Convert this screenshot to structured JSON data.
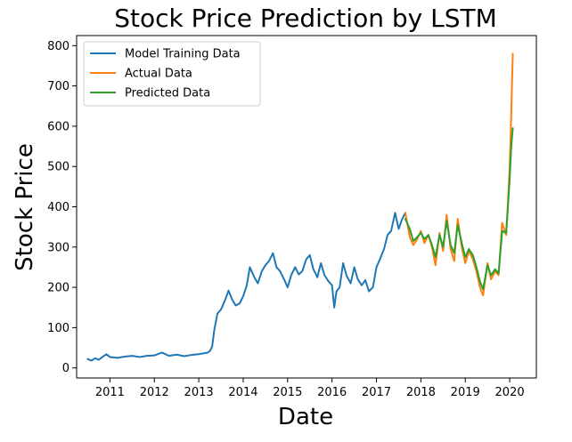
{
  "chart_data": {
    "type": "line",
    "title": "Stock Price Prediction by LSTM",
    "xlabel": "Date",
    "ylabel": "Stock Price",
    "xlim": [
      2010.25,
      2020.6
    ],
    "ylim": [
      -25,
      825
    ],
    "x_ticks": [
      2011,
      2012,
      2013,
      2014,
      2015,
      2016,
      2017,
      2018,
      2019,
      2020
    ],
    "x_tick_labels": [
      "2011",
      "2012",
      "2013",
      "2014",
      "2015",
      "2016",
      "2017",
      "2018",
      "2019",
      "2020"
    ],
    "y_ticks": [
      0,
      100,
      200,
      300,
      400,
      500,
      600,
      700,
      800
    ],
    "y_tick_labels": [
      "0",
      "100",
      "200",
      "300",
      "400",
      "500",
      "600",
      "700",
      "800"
    ],
    "grid": false,
    "legend_position": "upper-left",
    "series": [
      {
        "name": "Model Training Data",
        "color": "#1f77b4",
        "x": [
          2010.5,
          2010.58,
          2010.67,
          2010.75,
          2010.83,
          2010.92,
          2011.0,
          2011.17,
          2011.33,
          2011.5,
          2011.67,
          2011.83,
          2012.0,
          2012.17,
          2012.33,
          2012.5,
          2012.67,
          2012.83,
          2013.0,
          2013.1,
          2013.2,
          2013.25,
          2013.3,
          2013.35,
          2013.42,
          2013.5,
          2013.58,
          2013.67,
          2013.75,
          2013.83,
          2013.92,
          2014.0,
          2014.08,
          2014.15,
          2014.25,
          2014.33,
          2014.42,
          2014.5,
          2014.58,
          2014.67,
          2014.75,
          2014.83,
          2014.92,
          2015.0,
          2015.08,
          2015.17,
          2015.25,
          2015.33,
          2015.42,
          2015.5,
          2015.58,
          2015.67,
          2015.75,
          2015.83,
          2015.92,
          2016.0,
          2016.05,
          2016.1,
          2016.17,
          2016.25,
          2016.33,
          2016.42,
          2016.5,
          2016.58,
          2016.67,
          2016.75,
          2016.83,
          2016.92,
          2017.0,
          2017.08,
          2017.17,
          2017.25,
          2017.33,
          2017.42,
          2017.5,
          2017.58,
          2017.65
        ],
        "y": [
          22,
          18,
          24,
          20,
          27,
          34,
          27,
          25,
          28,
          30,
          27,
          30,
          31,
          38,
          30,
          33,
          29,
          32,
          34,
          36,
          38,
          42,
          52,
          95,
          135,
          145,
          165,
          192,
          170,
          155,
          160,
          178,
          205,
          250,
          225,
          210,
          240,
          255,
          265,
          285,
          250,
          240,
          220,
          200,
          230,
          250,
          232,
          240,
          270,
          280,
          245,
          225,
          260,
          230,
          215,
          205,
          150,
          190,
          200,
          260,
          228,
          210,
          250,
          220,
          205,
          218,
          190,
          200,
          250,
          270,
          295,
          330,
          340,
          385,
          345,
          370,
          385
        ]
      },
      {
        "name": "Actual Data",
        "color": "#ff7f0e",
        "x": [
          2017.65,
          2017.75,
          2017.83,
          2017.92,
          2018.0,
          2018.08,
          2018.17,
          2018.25,
          2018.33,
          2018.42,
          2018.5,
          2018.58,
          2018.67,
          2018.75,
          2018.83,
          2018.92,
          2019.0,
          2019.08,
          2019.17,
          2019.25,
          2019.33,
          2019.4,
          2019.5,
          2019.58,
          2019.67,
          2019.75,
          2019.83,
          2019.92,
          2019.96,
          2020.0,
          2020.03,
          2020.05,
          2020.07
        ],
        "y": [
          385,
          325,
          305,
          320,
          340,
          310,
          330,
          300,
          255,
          335,
          290,
          380,
          295,
          265,
          370,
          300,
          260,
          290,
          270,
          240,
          200,
          180,
          260,
          220,
          240,
          230,
          360,
          330,
          410,
          500,
          610,
          700,
          780
        ]
      },
      {
        "name": "Predicted Data",
        "color": "#2ca02c",
        "x": [
          2017.65,
          2017.75,
          2017.83,
          2017.92,
          2018.0,
          2018.08,
          2018.17,
          2018.25,
          2018.33,
          2018.42,
          2018.5,
          2018.58,
          2018.67,
          2018.75,
          2018.83,
          2018.92,
          2019.0,
          2019.08,
          2019.17,
          2019.25,
          2019.33,
          2019.4,
          2019.5,
          2019.58,
          2019.67,
          2019.75,
          2019.83,
          2019.92,
          2019.96,
          2020.0,
          2020.03,
          2020.05,
          2020.07
        ],
        "y": [
          370,
          345,
          315,
          325,
          335,
          320,
          330,
          305,
          275,
          330,
          300,
          365,
          305,
          285,
          355,
          310,
          275,
          295,
          280,
          250,
          215,
          195,
          255,
          230,
          245,
          235,
          340,
          335,
          400,
          470,
          540,
          570,
          595
        ]
      }
    ]
  }
}
